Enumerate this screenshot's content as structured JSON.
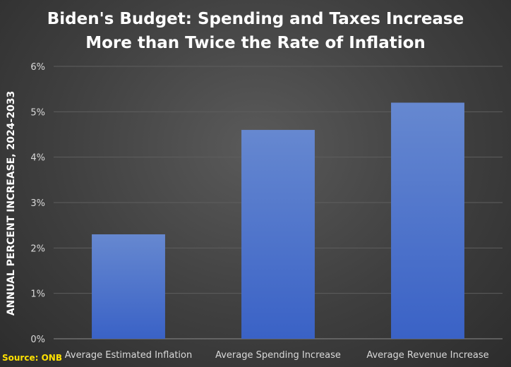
{
  "chart_data": {
    "type": "bar",
    "title_lines": [
      "Biden's Budget: Spending and Taxes Increase",
      "More than Twice the Rate of Inflation"
    ],
    "xlabel": "",
    "ylabel": "ANNUAL PERCENT INCREASE, 2024-2033",
    "categories": [
      "Average Estimated Inflation",
      "Average Spending Increase",
      "Average Revenue Increase"
    ],
    "values": [
      2.3,
      4.6,
      5.2
    ],
    "ylim": [
      0,
      6
    ],
    "yticks": [
      0,
      1,
      2,
      3,
      4,
      5,
      6
    ],
    "ytick_suffix": "%",
    "grid": true,
    "legend": "none",
    "bar_color_top": "#6688d0",
    "bar_color_bottom": "#3a62c6",
    "source": "Source: ONB"
  }
}
